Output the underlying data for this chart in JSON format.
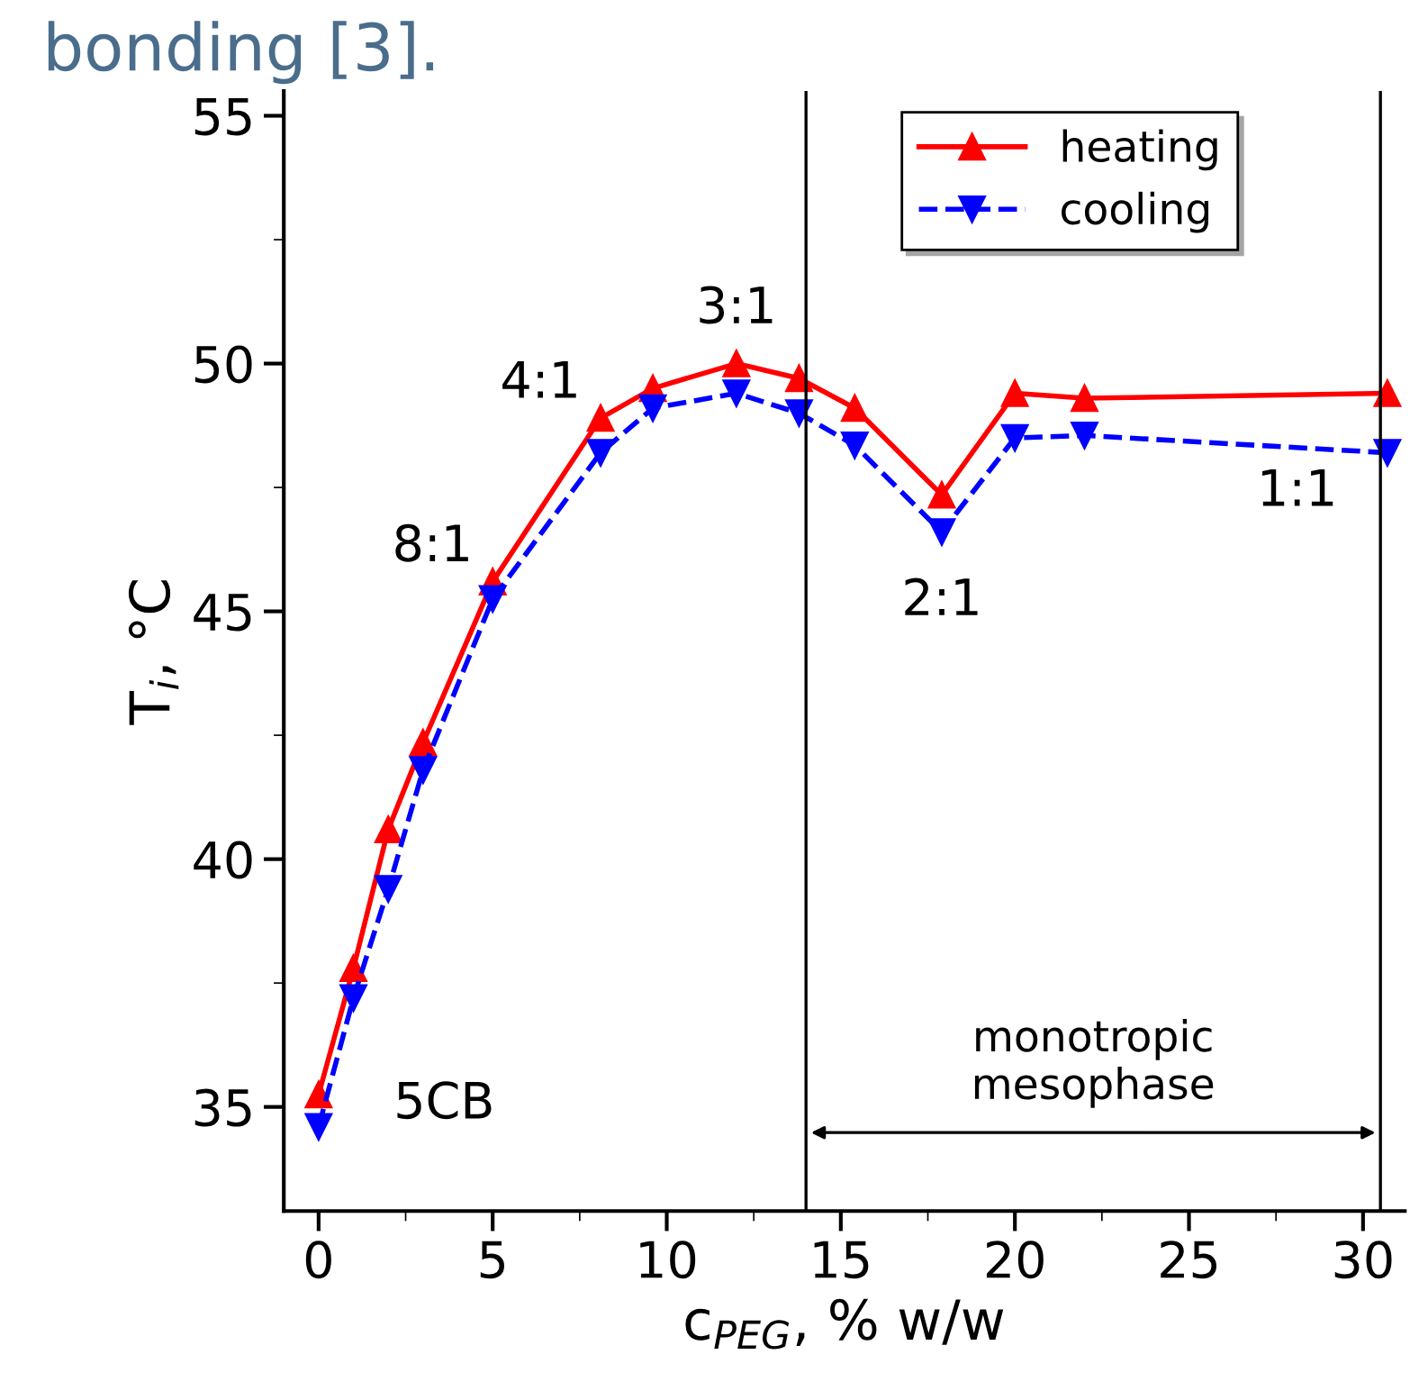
{
  "chart_data": {
    "type": "line",
    "xlabel": "c$_{PEG}$, % w/w",
    "ylabel": "T$_{i}$, °C",
    "xlim": [
      -1,
      31.2
    ],
    "ylim": [
      32.9,
      55.5
    ],
    "xticks": [
      0,
      5,
      10,
      15,
      20,
      25,
      30
    ],
    "yticks": [
      35,
      40,
      45,
      50,
      55
    ],
    "series": [
      {
        "name": "heating",
        "color": "#ff0000",
        "marker": "triangle",
        "line_style": "solid",
        "x": [
          0,
          1,
          2,
          3,
          5,
          8.1,
          9.6,
          12,
          13.8,
          15.4,
          17.9,
          20,
          22,
          30.7
        ],
        "values": [
          35.25,
          37.8,
          40.6,
          42.35,
          45.6,
          48.9,
          49.5,
          50.0,
          49.7,
          49.1,
          47.35,
          49.4,
          49.3,
          49.4
        ]
      },
      {
        "name": "cooling",
        "color": "#0000ff",
        "marker": "triangle_down",
        "line_style": "dashed",
        "x": [
          0,
          1,
          2,
          3,
          5,
          8.1,
          9.6,
          12,
          13.8,
          15.4,
          17.9,
          20,
          22,
          30.7
        ],
        "values": [
          34.6,
          37.2,
          39.4,
          41.8,
          45.25,
          48.2,
          49.1,
          49.4,
          49.0,
          48.35,
          46.6,
          48.5,
          48.55,
          48.2
        ]
      }
    ],
    "ref_lines": [
      {
        "axis": "x",
        "value": 14,
        "color": "#000000"
      },
      {
        "axis": "x",
        "value": 30.5,
        "color": "#000000"
      }
    ],
    "annotations": [
      "bonding [3].",
      {
        "text": "5CB",
        "x": 0,
        "y": 35.25
      },
      {
        "text": "8:1",
        "x": 5,
        "y": 45.6
      },
      {
        "text": "4:1",
        "x": 8.1,
        "y": 48.9
      },
      {
        "text": "3:1",
        "x": 12,
        "y": 50.0
      },
      {
        "text": "2:1",
        "x": 17.9,
        "y": 46.6
      },
      {
        "text": "1:1",
        "x": 30.7,
        "y": 48.2
      },
      "monotropic\nmesophase"
    ],
    "legend": "top right",
    "grid": false
  }
}
